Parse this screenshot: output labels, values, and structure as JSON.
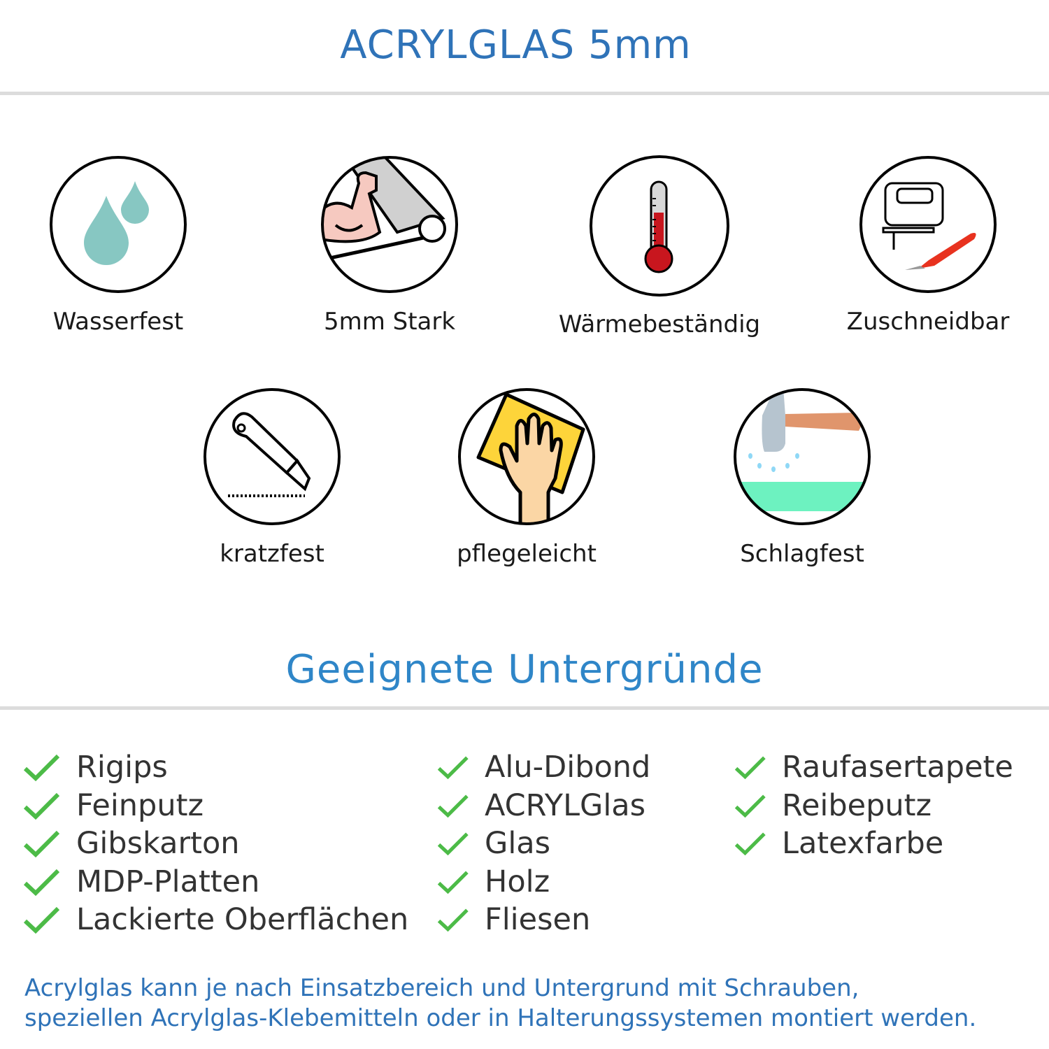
{
  "title": "ACRYLGLAS 5mm",
  "features": [
    {
      "label": "Wasserfest",
      "icon": "water-drops-icon"
    },
    {
      "label": "5mm Stark",
      "icon": "muscle-arm-icon"
    },
    {
      "label": "Wärmebeständig",
      "icon": "thermometer-icon"
    },
    {
      "label": "Zuschneidbar",
      "icon": "jigsaw-cutter-icon"
    },
    {
      "label": "kratzfest",
      "icon": "box-cutter-icon"
    },
    {
      "label": "pflegeleicht",
      "icon": "cleaning-hand-icon"
    },
    {
      "label": "Schlagfest",
      "icon": "hammer-icon"
    }
  ],
  "subtitle": "Geeignete Untergründe",
  "surfaces": {
    "col1": [
      "Rigips",
      "Feinputz",
      "Gibskarton",
      "MDP-Platten",
      "Lackierte Oberflächen"
    ],
    "col2": [
      "Alu-Dibond",
      "ACRYLGlas",
      "Glas",
      "Holz",
      "Fliesen"
    ],
    "col3": [
      "Raufasertapete",
      "Reibeputz",
      "Latexfarbe"
    ]
  },
  "footer": {
    "line1": "Acrylglas kann je nach Einsatzbereich und Untergrund mit Schrauben,",
    "line2": "speziellen Acrylglas-Klebemitteln oder in Halterungssystemen montiert werden."
  },
  "colors": {
    "title": "#2f73b8",
    "subtitle": "#2f86c8",
    "check": "#4cbb47"
  }
}
